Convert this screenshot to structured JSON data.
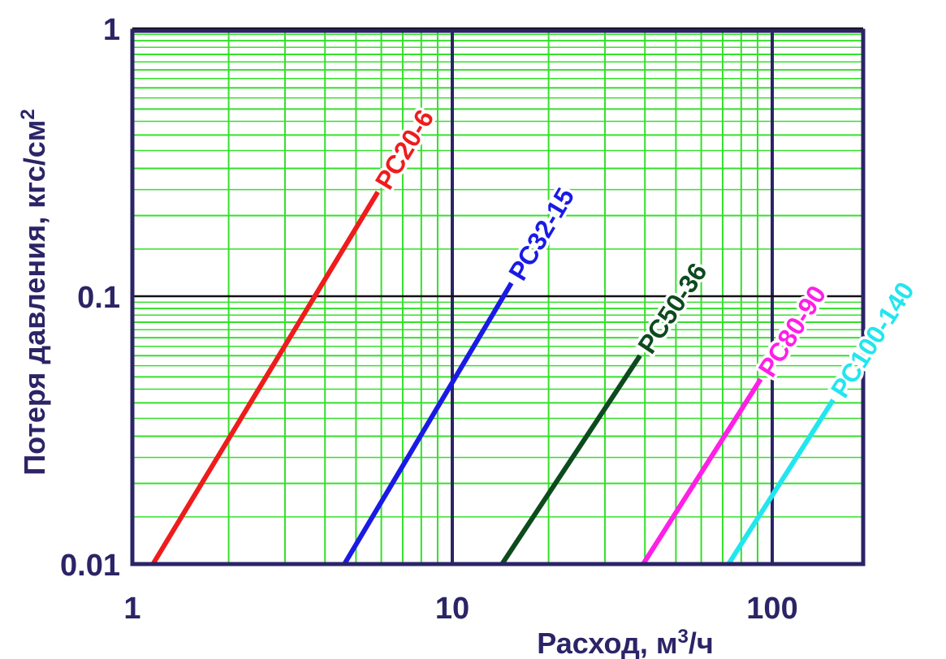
{
  "chart_data": {
    "type": "line",
    "x_scale": "log",
    "y_scale": "log",
    "xlim": [
      1,
      200
    ],
    "ylim": [
      0.01,
      1.3
    ],
    "grid": true,
    "xlabel": "Расход, м",
    "xlabel_sup": "3",
    "xlabel_suffix": "/ч",
    "ylabel": "Потеря давления, кгс/см",
    "ylabel_sup": "2",
    "x_ticks": [
      {
        "value": 1,
        "label": "1"
      },
      {
        "value": 10,
        "label": "10"
      },
      {
        "value": 100,
        "label": "100"
      }
    ],
    "y_ticks": [
      {
        "value": 0.01,
        "label": "0.01"
      },
      {
        "value": 0.1,
        "label": "0.1"
      },
      {
        "value": 1,
        "label": "1"
      }
    ],
    "series": [
      {
        "name": "РС20-6",
        "color": "#ee1c1c",
        "x": [
          1.16,
          5.85
        ],
        "y": [
          0.01,
          0.245
        ]
      },
      {
        "name": "РС32-15",
        "color": "#1a1ae6",
        "x": [
          4.6,
          15.3
        ],
        "y": [
          0.01,
          0.112
        ]
      },
      {
        "name": "РС50-36",
        "color": "#0d4a1e",
        "x": [
          14.3,
          38.6
        ],
        "y": [
          0.01,
          0.06
        ]
      },
      {
        "name": "РС80-90",
        "color": "#ff1fe6",
        "x": [
          39.5,
          92
        ],
        "y": [
          0.01,
          0.049
        ]
      },
      {
        "name": "РС100-140",
        "color": "#22e6ee",
        "x": [
          73,
          155
        ],
        "y": [
          0.01,
          0.041
        ]
      }
    ]
  }
}
